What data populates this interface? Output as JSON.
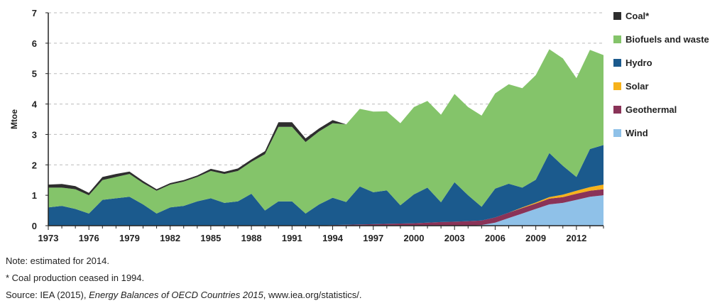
{
  "chart_data": {
    "type": "area",
    "stacked": true,
    "title": "",
    "xlabel": "",
    "ylabel": "Mtoe",
    "ylim": [
      0,
      7
    ],
    "yticks": [
      0,
      1,
      2,
      3,
      4,
      5,
      6,
      7
    ],
    "xlim": [
      1973,
      2014
    ],
    "xticks": [
      1973,
      1976,
      1979,
      1982,
      1985,
      1988,
      1991,
      1994,
      1997,
      2000,
      2003,
      2006,
      2009,
      2012
    ],
    "grid": "horizontal dashed",
    "legend_position": "right",
    "x": [
      1973,
      1974,
      1975,
      1976,
      1977,
      1978,
      1979,
      1980,
      1981,
      1982,
      1983,
      1984,
      1985,
      1986,
      1987,
      1988,
      1989,
      1990,
      1991,
      1992,
      1993,
      1994,
      1995,
      1996,
      1997,
      1998,
      1999,
      2000,
      2001,
      2002,
      2003,
      2004,
      2005,
      2006,
      2007,
      2008,
      2009,
      2010,
      2011,
      2012,
      2013,
      2014
    ],
    "series": [
      {
        "name": "Wind",
        "color": "#8fc1e8",
        "values": [
          0,
          0,
          0,
          0,
          0,
          0,
          0,
          0,
          0,
          0,
          0,
          0,
          0,
          0,
          0,
          0,
          0,
          0,
          0,
          0,
          0,
          0,
          0,
          0,
          0,
          0,
          0,
          0,
          0,
          0,
          0,
          0,
          0.02,
          0.1,
          0.25,
          0.4,
          0.55,
          0.7,
          0.75,
          0.85,
          0.95,
          1.0
        ]
      },
      {
        "name": "Geothermal",
        "color": "#8a3358",
        "values": [
          0,
          0,
          0,
          0,
          0,
          0,
          0,
          0,
          0,
          0,
          0,
          0,
          0,
          0,
          0,
          0,
          0,
          0,
          0,
          0,
          0,
          0.02,
          0.03,
          0.04,
          0.05,
          0.06,
          0.07,
          0.08,
          0.1,
          0.12,
          0.13,
          0.15,
          0.15,
          0.17,
          0.18,
          0.18,
          0.18,
          0.19,
          0.19,
          0.2,
          0.2,
          0.2
        ]
      },
      {
        "name": "Solar",
        "color": "#f6b21b",
        "values": [
          0,
          0,
          0,
          0,
          0,
          0,
          0,
          0,
          0,
          0,
          0,
          0,
          0,
          0,
          0,
          0,
          0,
          0,
          0,
          0,
          0,
          0,
          0,
          0,
          0,
          0,
          0,
          0,
          0,
          0,
          0,
          0,
          0,
          0,
          0,
          0.02,
          0.03,
          0.05,
          0.08,
          0.1,
          0.12,
          0.15
        ]
      },
      {
        "name": "Hydro",
        "color": "#1b5a8d",
        "values": [
          0.6,
          0.65,
          0.55,
          0.4,
          0.85,
          0.9,
          0.95,
          0.7,
          0.4,
          0.6,
          0.65,
          0.8,
          0.9,
          0.75,
          0.8,
          1.05,
          0.5,
          0.8,
          0.8,
          0.4,
          0.7,
          0.9,
          0.75,
          1.25,
          1.05,
          1.1,
          0.6,
          0.95,
          1.15,
          0.65,
          1.3,
          0.85,
          0.45,
          0.95,
          0.95,
          0.65,
          0.75,
          1.45,
          0.95,
          0.45,
          1.25,
          1.3
        ]
      },
      {
        "name": "Biofuels and waste",
        "color": "#84c46a",
        "values": [
          0.65,
          0.6,
          0.65,
          0.6,
          0.65,
          0.7,
          0.75,
          0.7,
          0.75,
          0.75,
          0.8,
          0.8,
          0.9,
          0.95,
          1.0,
          1.05,
          1.85,
          2.45,
          2.45,
          2.35,
          2.4,
          2.45,
          2.55,
          2.55,
          2.65,
          2.6,
          2.7,
          2.87,
          2.85,
          2.88,
          2.9,
          2.9,
          3.0,
          3.13,
          3.27,
          3.27,
          3.44,
          3.41,
          3.53,
          3.25,
          3.26,
          2.96
        ]
      },
      {
        "name": "Coal*",
        "color": "#2e2e2e",
        "values": [
          0.1,
          0.12,
          0.1,
          0.08,
          0.1,
          0.1,
          0.08,
          0.07,
          0.05,
          0.05,
          0.05,
          0.05,
          0.07,
          0.07,
          0.08,
          0.08,
          0.1,
          0.15,
          0.15,
          0.12,
          0.1,
          0.1,
          0,
          0,
          0,
          0,
          0,
          0,
          0,
          0,
          0,
          0,
          0,
          0,
          0,
          0,
          0,
          0,
          0,
          0,
          0,
          0
        ]
      }
    ],
    "legend": [
      "Coal*",
      "Biofuels and waste",
      "Hydro",
      "Solar",
      "Geothermal",
      "Wind"
    ]
  },
  "notes": {
    "note_line": "Note: estimated for 2014.",
    "coal_line": "* Coal production ceased in 1994.",
    "source_prefix": "Source: IEA (2015), ",
    "source_title": "Energy Balances of OECD Countries 2015",
    "source_suffix": ", www.iea.org/statistics/."
  }
}
